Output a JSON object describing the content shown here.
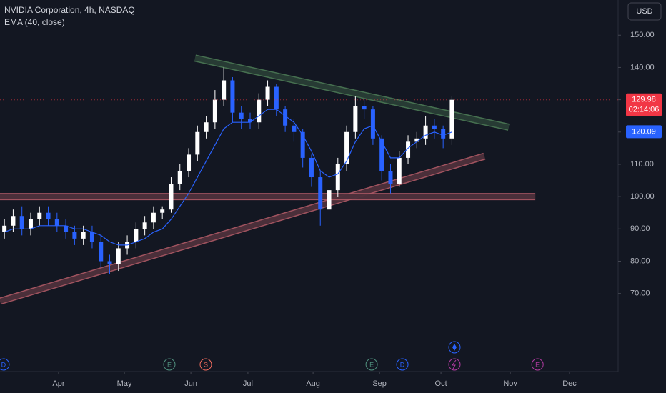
{
  "chart_data": {
    "type": "candlestick",
    "title": "NVIDIA Corporation, 4h, NASDAQ",
    "indicator_label": "EMA (40, close)",
    "currency": "USD",
    "countdown": "02:14:06",
    "up_color": "#ffffff",
    "down_color": "#2962ff",
    "x": [
      2,
      6,
      10,
      14,
      18,
      22,
      26,
      30,
      34,
      38,
      42,
      46,
      50,
      54,
      58,
      62,
      66,
      70,
      74,
      78,
      82,
      86,
      90,
      94,
      98,
      102,
      106,
      110,
      114,
      118,
      122,
      126,
      130,
      134,
      138,
      142,
      146,
      150,
      154,
      158,
      162,
      166,
      170,
      174,
      178,
      182,
      186,
      190,
      194,
      198,
      202,
      206
    ],
    "open": [
      89,
      91,
      94,
      90,
      93,
      95,
      93,
      91,
      89,
      87,
      89,
      86,
      80,
      79,
      84,
      86,
      90,
      92,
      95,
      96,
      104,
      108,
      113,
      120,
      123,
      130,
      136,
      126,
      124,
      123,
      130,
      134,
      127,
      122,
      120,
      112,
      106,
      96,
      102,
      110,
      120,
      128,
      127,
      118,
      108,
      104,
      112,
      117,
      118,
      122,
      121,
      118
    ],
    "high": [
      93,
      96,
      97,
      95,
      97,
      97,
      95,
      93,
      91,
      91,
      91,
      88,
      82,
      86,
      88,
      92,
      94,
      97,
      97,
      106,
      110,
      115,
      122,
      125,
      133,
      140,
      137,
      128,
      126,
      132,
      136,
      135,
      128,
      124,
      121,
      113,
      108,
      104,
      112,
      122,
      131,
      130,
      128,
      119,
      110,
      114,
      119,
      120,
      125,
      124,
      122,
      131
    ],
    "low": [
      87,
      89,
      88,
      88,
      91,
      91,
      89,
      87,
      85,
      85,
      84,
      78,
      76,
      77,
      82,
      84,
      88,
      90,
      93,
      95,
      102,
      106,
      111,
      118,
      121,
      128,
      123,
      121,
      121,
      121,
      128,
      125,
      120,
      117,
      109,
      103,
      91,
      95,
      100,
      108,
      118,
      124,
      116,
      105,
      101,
      103,
      110,
      115,
      116,
      118,
      115,
      116
    ],
    "close": [
      91,
      94,
      90,
      93,
      95,
      93,
      91,
      89,
      87,
      89,
      86,
      80,
      79,
      84,
      86,
      90,
      92,
      95,
      96,
      104,
      108,
      113,
      120,
      123,
      130,
      136,
      126,
      124,
      123,
      130,
      134,
      127,
      122,
      120,
      112,
      106,
      96,
      102,
      110,
      120,
      128,
      127,
      118,
      108,
      104,
      112,
      117,
      118,
      122,
      121,
      118,
      129.98
    ],
    "ema": {
      "name": "EMA (40, close)",
      "color": "#2962ff",
      "values": [
        89,
        90,
        90,
        90,
        91,
        91,
        91,
        91,
        90,
        90,
        89,
        88,
        86,
        85,
        85,
        86,
        87,
        89,
        90,
        93,
        97,
        101,
        106,
        111,
        116,
        121,
        123,
        123,
        123,
        125,
        127,
        127,
        125,
        123,
        119,
        114,
        108,
        106,
        107,
        111,
        117,
        121,
        122,
        117,
        112,
        112,
        115,
        117,
        119,
        120,
        119,
        120
      ]
    },
    "last_price": 129.98,
    "last_ema": 120.09,
    "last_price_color": "#f23645",
    "ylim": [
      45.8,
      160.9
    ],
    "yticks": [
      {
        "value": 150,
        "label": "150.00"
      },
      {
        "value": 140,
        "label": "140.00"
      },
      {
        "value": 130,
        "label": "130.00"
      },
      {
        "value": 120,
        "label": "120.00"
      },
      {
        "value": 110,
        "label": "110.00"
      },
      {
        "value": 100,
        "label": "100.00"
      },
      {
        "value": 90,
        "label": "90.00"
      },
      {
        "value": 80,
        "label": "80.00"
      },
      {
        "value": 70,
        "label": "70.00"
      }
    ],
    "xlim": [
      0,
      281.75
    ],
    "xticks": [
      {
        "value": 26.7,
        "label": "Apr"
      },
      {
        "value": 56.7,
        "label": "May"
      },
      {
        "value": 87,
        "label": "Jun"
      },
      {
        "value": 113,
        "label": "Jul"
      },
      {
        "value": 142.7,
        "label": "Aug"
      },
      {
        "value": 173,
        "label": "Sep"
      },
      {
        "value": 201,
        "label": "Oct"
      },
      {
        "value": 232.6,
        "label": "Nov"
      },
      {
        "value": 259.6,
        "label": "Dec"
      }
    ],
    "trendlines": [
      {
        "color": "#4c7a55",
        "x": [
          88.9,
          231.9
        ],
        "y": [
          142.9,
          121.5
        ]
      },
      {
        "color": "#b05a66",
        "x": [
          0,
          220.8
        ],
        "y": [
          67.6,
          112.5
        ]
      },
      {
        "color": "#b05a66",
        "x": [
          0,
          244
        ],
        "y": [
          100,
          100
        ]
      }
    ],
    "events": [
      {
        "label": "D",
        "x": 1.6,
        "color": "#2962ff"
      },
      {
        "label": "E",
        "x": 77.2,
        "color": "#4f8f7d"
      },
      {
        "label": "S",
        "x": 93.8,
        "color": "#f06b5d"
      },
      {
        "label": "E",
        "x": 169.4,
        "color": "#4f8f7d"
      },
      {
        "label": "D",
        "x": 183.4,
        "color": "#2962ff"
      },
      {
        "label": "E",
        "x": 245,
        "color": "#b03aa0"
      }
    ]
  }
}
